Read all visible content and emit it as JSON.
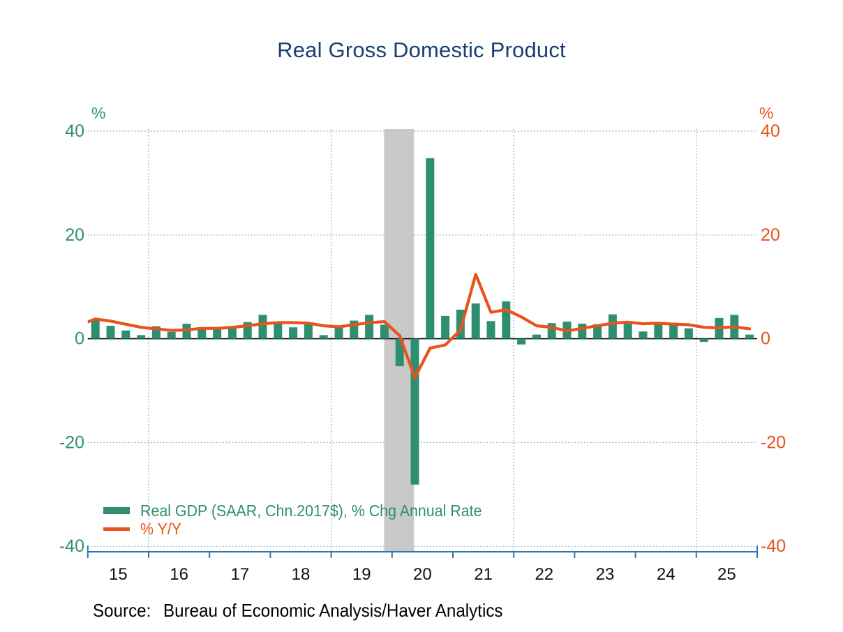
{
  "title": "Real Gross Domestic Product",
  "source": {
    "label": "Source:",
    "text": "Bureau of Economic Analysis/Haver Analytics"
  },
  "colors": {
    "bar_green": "#2e8f70",
    "line_orange": "#e8521c",
    "title_navy": "#1a3e74",
    "grid_blue": "#6f9bd0",
    "axis_blue": "#2878b8",
    "recession_gray": "#c9c9c9",
    "zero_line_black": "#000000",
    "x_label_black": "#111111"
  },
  "chart_data": {
    "type": "combo",
    "frequency": "quarterly",
    "title": "Real Gross Domestic Product",
    "y_unit_left": "%",
    "y_unit_right": "%",
    "ylim": [
      -40,
      40
    ],
    "yticks_left": [
      "40",
      "20",
      "0",
      "-20",
      "-40"
    ],
    "ytick_values": [
      40,
      20,
      0,
      -20,
      -40
    ],
    "xticklabels": [
      "15",
      "16",
      "17",
      "18",
      "19",
      "20",
      "21",
      "22",
      "23",
      "24",
      "25"
    ],
    "x_start_year": 2015,
    "x_end_year": 2026,
    "grid": {
      "h_dotted_values": [
        40,
        20,
        -20,
        -40
      ],
      "v_dotted_years": [
        2016,
        2019,
        2022,
        2025
      ],
      "zero_line": true
    },
    "recession_band": {
      "start_year_frac": 2019.87,
      "end_year_frac": 2020.36
    },
    "legend_position": "inside-bottom-left",
    "quarters": [
      "2015Q1",
      "2015Q2",
      "2015Q3",
      "2015Q4",
      "2016Q1",
      "2016Q2",
      "2016Q3",
      "2016Q4",
      "2017Q1",
      "2017Q2",
      "2017Q3",
      "2017Q4",
      "2018Q1",
      "2018Q2",
      "2018Q3",
      "2018Q4",
      "2019Q1",
      "2019Q2",
      "2019Q3",
      "2019Q4",
      "2020Q1",
      "2020Q2",
      "2020Q3",
      "2020Q4",
      "2021Q1",
      "2021Q2",
      "2021Q3",
      "2021Q4",
      "2022Q1",
      "2022Q2",
      "2022Q3",
      "2022Q4",
      "2023Q1",
      "2023Q2",
      "2023Q3",
      "2023Q4",
      "2024Q1",
      "2024Q2",
      "2024Q3",
      "2024Q4",
      "2025Q1",
      "2025Q2",
      "2025Q3",
      "2025Q4"
    ],
    "series": [
      {
        "name": "Real GDP (SAAR, Chn.2017$), % Chg Annual Rate",
        "kind": "bar",
        "color": "#2e8f70",
        "values": [
          3.7,
          2.5,
          1.6,
          0.7,
          2.4,
          1.3,
          2.9,
          2.2,
          2.0,
          2.3,
          3.2,
          4.6,
          3.0,
          2.2,
          2.8,
          0.7,
          2.5,
          3.5,
          4.6,
          2.7,
          -5.3,
          -28.1,
          34.8,
          4.4,
          5.6,
          6.8,
          3.4,
          7.2,
          -1.1,
          0.8,
          3.0,
          3.3,
          2.9,
          2.8,
          4.7,
          3.4,
          1.4,
          3.2,
          3.1,
          2.0,
          -0.6,
          4.0,
          4.6,
          0.8
        ]
      },
      {
        "name": "% Y/Y",
        "kind": "line",
        "color": "#e8521c",
        "pre_value_2014Q4": 2.7,
        "values": [
          3.8,
          3.4,
          2.8,
          2.2,
          1.9,
          1.6,
          1.7,
          2.0,
          2.0,
          2.2,
          2.5,
          2.9,
          3.1,
          3.1,
          3.0,
          2.5,
          2.3,
          2.7,
          3.1,
          3.3,
          0.6,
          -7.5,
          -1.8,
          -1.2,
          1.7,
          12.4,
          5.1,
          5.6,
          4.2,
          2.5,
          2.2,
          1.5,
          2.0,
          2.5,
          3.0,
          3.2,
          2.9,
          3.0,
          2.8,
          2.7,
          2.2,
          2.1,
          2.3,
          1.9
        ]
      }
    ]
  }
}
